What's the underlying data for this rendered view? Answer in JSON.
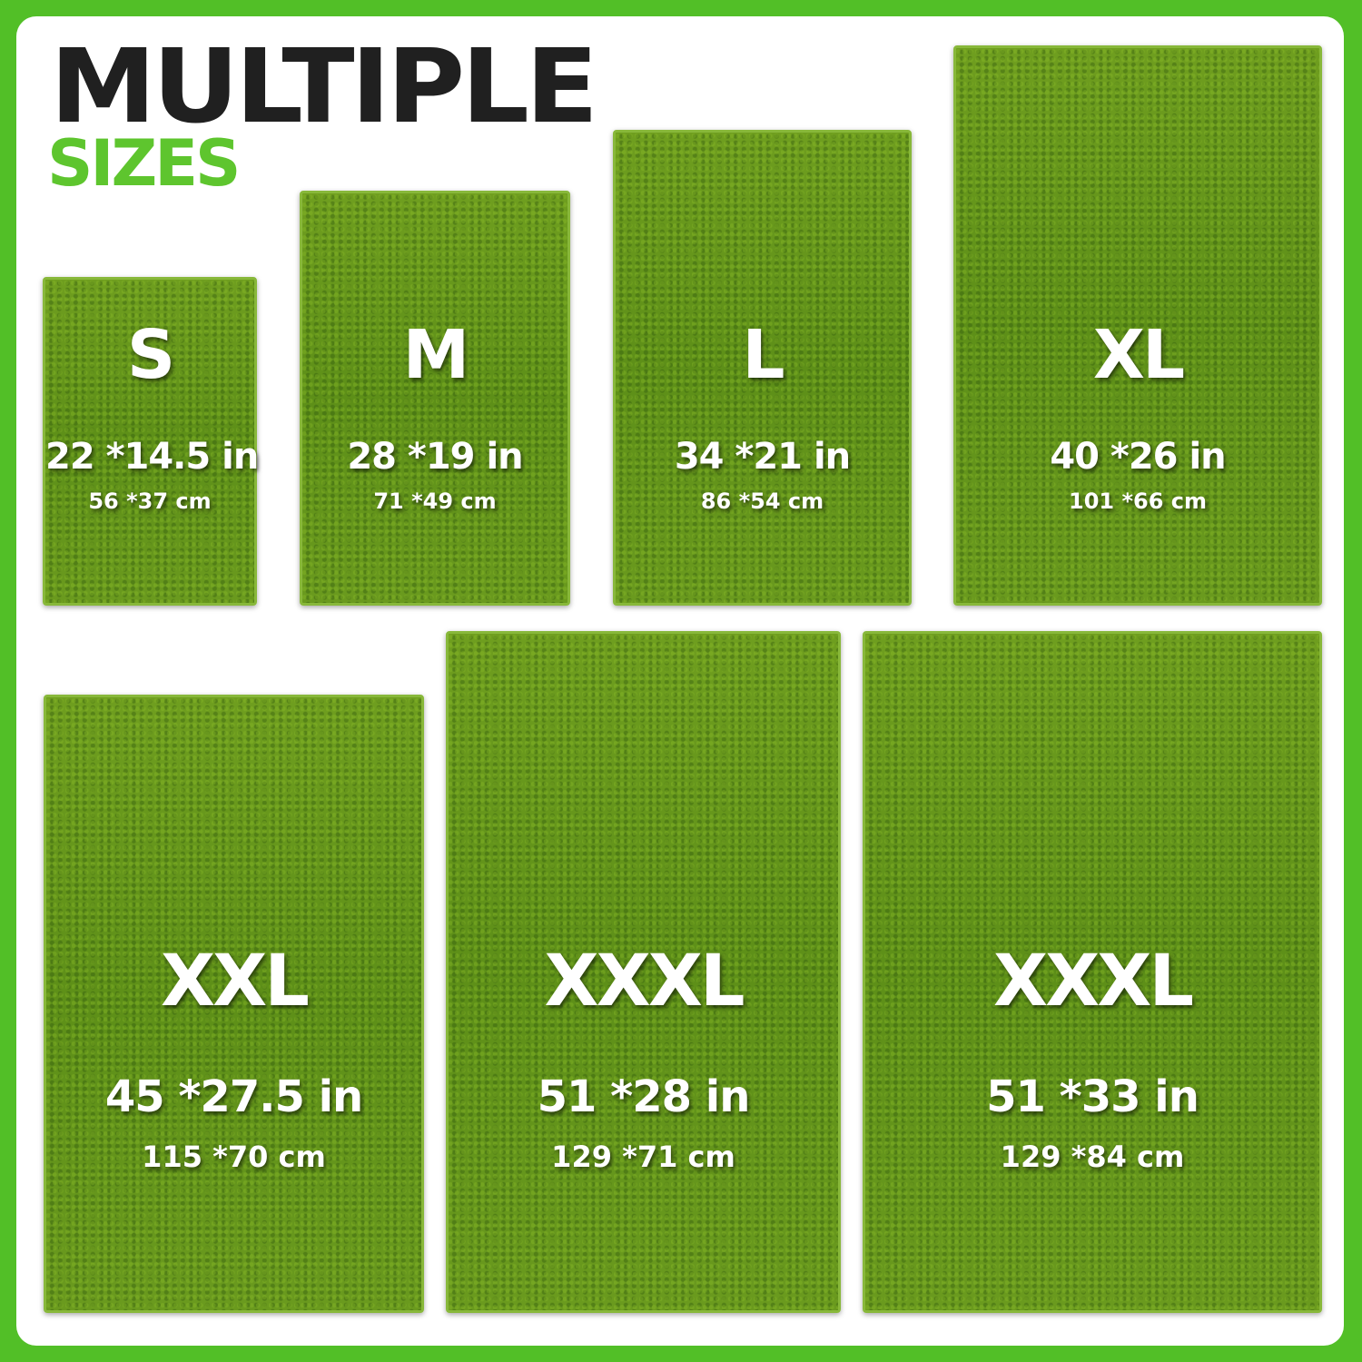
{
  "header": {
    "title": "MULTIPLE",
    "subtitle": "SIZES"
  },
  "colors": {
    "border": "#52bf27",
    "accent": "#5ec52e",
    "title": "#202020",
    "rug": "#5d8f18"
  },
  "sizes": [
    {
      "label": "S",
      "inches": "22 *14.5 in",
      "cm": "56 *37 cm"
    },
    {
      "label": "M",
      "inches": "28 *19 in",
      "cm": "71 *49 cm"
    },
    {
      "label": "L",
      "inches": "34 *21 in",
      "cm": "86 *54 cm"
    },
    {
      "label": "XL",
      "inches": "40 *26 in",
      "cm": "101 *66 cm"
    },
    {
      "label": "XXL",
      "inches": "45 *27.5 in",
      "cm": "115 *70 cm"
    },
    {
      "label": "XXXL",
      "inches": "51 *28 in",
      "cm": "129 *71 cm"
    },
    {
      "label": "XXXL",
      "inches": "51 *33 in",
      "cm": "129 *84 cm"
    }
  ]
}
